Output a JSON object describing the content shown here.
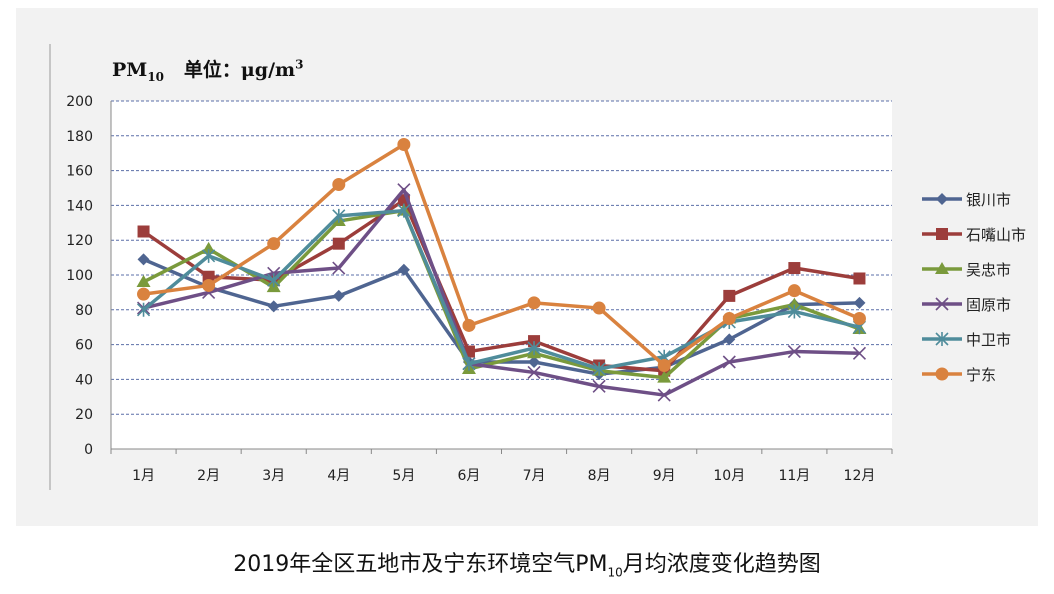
{
  "title_parts": {
    "before": "2019年全区五地市及宁东环境空气PM",
    "sub": "10",
    "after": "月均浓度变化趋势图"
  },
  "unit_parts": {
    "pm": "PM",
    "pm_sub": "10",
    "unit_text": "单位：μg/m",
    "unit_sup": "3"
  },
  "chart_data": {
    "type": "line",
    "categories": [
      "1月",
      "2月",
      "3月",
      "4月",
      "5月",
      "6月",
      "7月",
      "8月",
      "9月",
      "10月",
      "11月",
      "12月"
    ],
    "ylim": [
      0,
      200
    ],
    "yticks": [
      0,
      20,
      40,
      60,
      80,
      100,
      120,
      140,
      160,
      180,
      200
    ],
    "grid": true,
    "legend_position": "right",
    "series": [
      {
        "name": "银川市",
        "color": "#4f6591",
        "marker": "diamond",
        "values": [
          109,
          93,
          82,
          88,
          103,
          50,
          50,
          43,
          47,
          63,
          83,
          84
        ]
      },
      {
        "name": "石嘴山市",
        "color": "#9c3d3b",
        "marker": "square",
        "values": [
          125,
          99,
          97,
          118,
          143,
          56,
          62,
          48,
          45,
          88,
          104,
          98
        ]
      },
      {
        "name": "吴忠市",
        "color": "#7a9a3c",
        "marker": "triangle",
        "values": [
          96,
          115,
          93,
          131,
          137,
          46,
          55,
          45,
          41,
          75,
          83,
          69
        ]
      },
      {
        "name": "固原市",
        "color": "#6e4f86",
        "marker": "x",
        "values": [
          81,
          90,
          101,
          104,
          149,
          49,
          44,
          36,
          31,
          50,
          56,
          55
        ]
      },
      {
        "name": "中卫市",
        "color": "#4f8c9b",
        "marker": "star",
        "values": [
          80,
          111,
          97,
          134,
          137,
          49,
          58,
          46,
          53,
          73,
          79,
          70
        ]
      },
      {
        "name": "宁东",
        "color": "#d9823f",
        "marker": "circle",
        "values": [
          89,
          94,
          118,
          152,
          175,
          71,
          84,
          81,
          48,
          75,
          91,
          75
        ]
      }
    ]
  }
}
